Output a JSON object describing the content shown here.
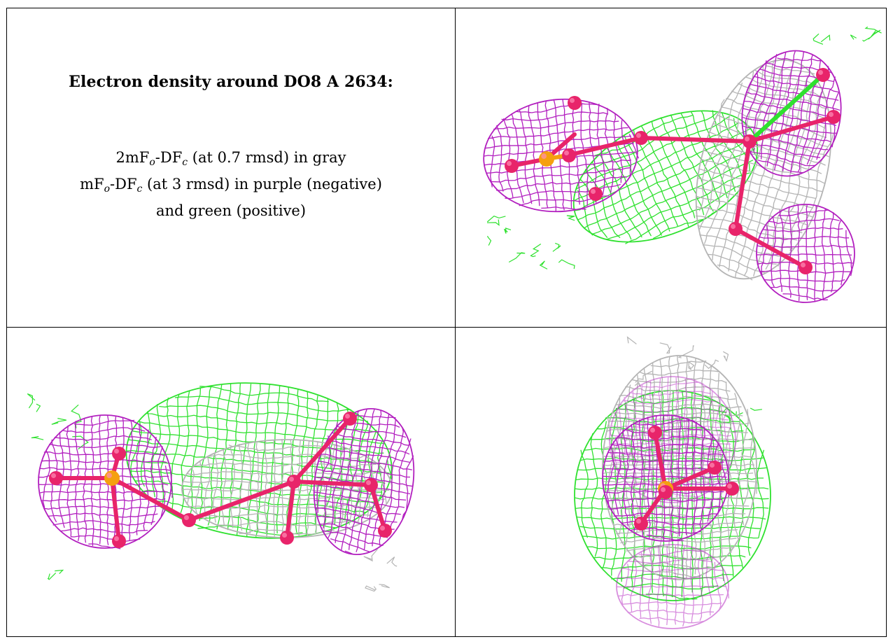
{
  "caption": {
    "title": "Electron density around DO8 A 2634:",
    "line1": {
      "pre": "2mF",
      "sub1": "o",
      "mid": "-DF",
      "sub2": "c",
      "post": " (at 0.7 rmsd) in gray"
    },
    "line2": {
      "pre": "mF",
      "sub1": "o",
      "mid": "-DF",
      "sub2": "c",
      "post": " (at 3 rmsd) in purple (negative)"
    },
    "line3": "and green (positive)"
  },
  "colors": {
    "map_2fofc": "#b4b4b4",
    "map_fofc_negative": "#b21fbf",
    "map_fofc_positive": "#2fe12f",
    "atom_oxygen": "#e8246a",
    "atom_phosphorus": "#f5a00f"
  },
  "panels": [
    {
      "view": "top-right-view"
    },
    {
      "view": "bottom-left-view"
    },
    {
      "view": "bottom-right-view"
    }
  ]
}
